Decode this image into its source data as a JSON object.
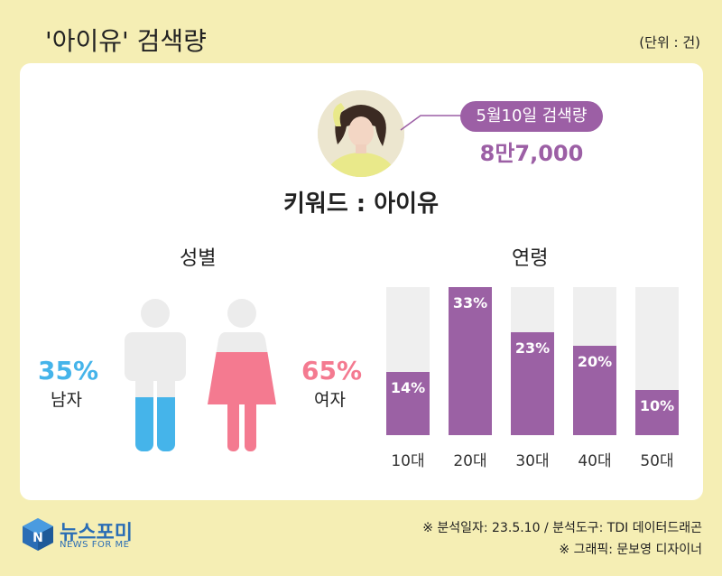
{
  "header": {
    "title": "'아이유' 검색량",
    "unit": "(단위 : 건)"
  },
  "highlight": {
    "label": "5월10일 검색량",
    "value": "8만7,000"
  },
  "keyword": "키워드 : 아이유",
  "gender": {
    "title": "성별",
    "male": {
      "percent": "35%",
      "label": "남자",
      "share": 35,
      "color": "#45b4ea"
    },
    "female": {
      "percent": "65%",
      "label": "여자",
      "share": 65,
      "color": "#f47a90"
    }
  },
  "age": {
    "title": "연령"
  },
  "chart_data": {
    "type": "bar",
    "categories": [
      "10대",
      "20대",
      "30대",
      "40대",
      "50대"
    ],
    "values": [
      14,
      33,
      23,
      20,
      10
    ],
    "value_labels": [
      "14%",
      "33%",
      "23%",
      "20%",
      "10%"
    ],
    "ylim": [
      0,
      33
    ],
    "color": "#9b61a4",
    "track_color": "#efefef",
    "grid": false
  },
  "footer": {
    "logo_name": "뉴스포미",
    "logo_sub": "NEWS FOR ME",
    "source": "※ 분석일자: 23.5.10  / 분석도구: TDI 데이터드래곤",
    "graphic": "※ 그래픽: 문보영 디자이너"
  }
}
